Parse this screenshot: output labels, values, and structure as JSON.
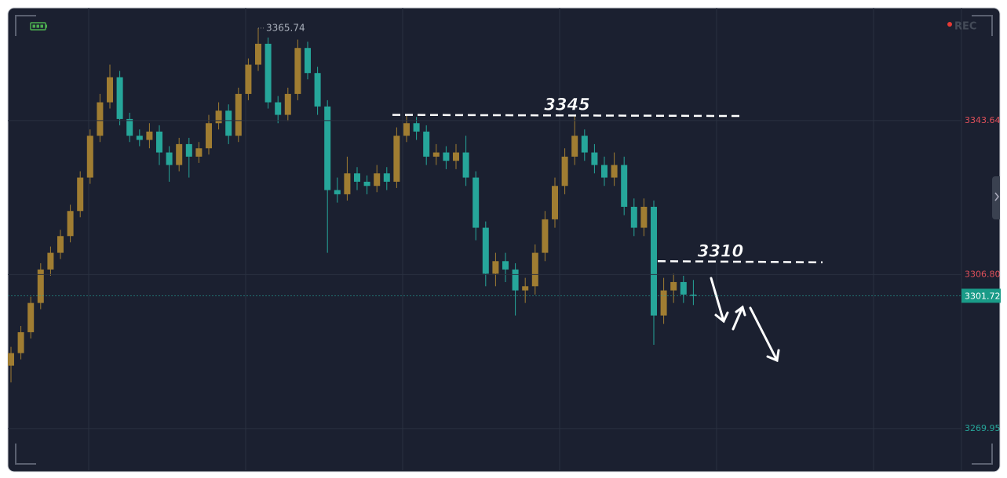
{
  "chart_data": {
    "type": "candlestick",
    "recording_label": "REC",
    "up_color": "#a07d32",
    "down_color": "#26a69a",
    "ylim": [
      3260.0,
      3370.6
    ],
    "yticks": [
      3343.64,
      {
        "value": 3306.8,
        "label": "3306.80"
      },
      3269.95
    ],
    "last_price": 3301.72,
    "levels": [
      {
        "value": 3345,
        "label": "3345"
      },
      {
        "value": 3310,
        "label": "3310"
      }
    ],
    "open": [
      3285,
      3288,
      3293,
      3300,
      3308,
      3312,
      3316,
      3322,
      3330,
      3340,
      3348,
      3354,
      3344,
      3340,
      3339,
      3341,
      3336,
      3333,
      3338,
      3335,
      3337,
      3343,
      3346,
      3340,
      3350,
      3357,
      3362,
      3348,
      3345,
      3350,
      3361,
      3355,
      3347,
      3327,
      3326,
      3331,
      3329,
      3328,
      3331,
      3329,
      3340,
      3343,
      3341,
      3335,
      3336,
      3334,
      3336,
      3330,
      3318,
      3307,
      3310,
      3308,
      3303,
      3304,
      3312,
      3320,
      3328,
      3335,
      3340,
      3336,
      3333,
      3330,
      3333,
      3323,
      3318,
      3323,
      3297,
      3303,
      3305,
      3302
    ],
    "high": [
      3289.5,
      3294.5,
      3301.5,
      3309.5,
      3313.5,
      3317.5,
      3323.5,
      3331.5,
      3341.5,
      3350,
      3357,
      3355.5,
      3345.5,
      3341.5,
      3343,
      3342.5,
      3337.5,
      3339.5,
      3339.5,
      3338.5,
      3345,
      3348,
      3347.5,
      3351.5,
      3358.5,
      3365.74,
      3363.5,
      3349.5,
      3351.5,
      3363,
      3362.5,
      3356.5,
      3348.5,
      3330,
      3335,
      3332.5,
      3330.5,
      3333,
      3332.5,
      3342,
      3345,
      3344.5,
      3342.5,
      3338,
      3337.5,
      3338,
      3340,
      3331.5,
      3319.5,
      3312,
      3312,
      3309.5,
      3306,
      3314,
      3322,
      3330,
      3337,
      3345,
      3341.5,
      3338,
      3335,
      3336,
      3335,
      3325,
      3325,
      3324.5,
      3306,
      3307,
      3306.5,
      3305.5
    ],
    "low": [
      3281,
      3286.5,
      3291.5,
      3298.5,
      3306.5,
      3310.5,
      3314.5,
      3320.5,
      3328.5,
      3338.5,
      3346.5,
      3342.5,
      3338.5,
      3337.5,
      3337,
      3333,
      3329,
      3331.5,
      3330,
      3333.5,
      3335.5,
      3341.5,
      3338,
      3338.5,
      3348.5,
      3355.5,
      3346.5,
      3343,
      3343.5,
      3348.5,
      3353.5,
      3345,
      3312,
      3324,
      3324.5,
      3327,
      3326,
      3326.5,
      3327,
      3327.5,
      3338.5,
      3339,
      3333,
      3333,
      3332,
      3332,
      3328,
      3315,
      3304,
      3304,
      3305,
      3297,
      3300,
      3302,
      3310,
      3318,
      3326,
      3333,
      3334,
      3331,
      3328,
      3328,
      3321,
      3316,
      3316,
      3290,
      3295,
      3300,
      3300,
      3299.5
    ],
    "close": [
      3288,
      3293,
      3300,
      3308,
      3312,
      3316,
      3322,
      3330,
      3340,
      3348,
      3354,
      3344,
      3340,
      3339,
      3341,
      3336,
      3333,
      3338,
      3335,
      3337,
      3343,
      3346,
      3340,
      3350,
      3357,
      3362,
      3348,
      3345,
      3350,
      3361,
      3355,
      3347,
      3327,
      3326,
      3331,
      3329,
      3328,
      3331,
      3329,
      3340,
      3343,
      3341,
      3335,
      3336,
      3334,
      3336,
      3330,
      3318,
      3307,
      3310,
      3308,
      3303,
      3304,
      3312,
      3320,
      3328,
      3335,
      3340,
      3336,
      3333,
      3330,
      3333,
      3323,
      3318,
      3323,
      3297,
      3303,
      3305,
      3302,
      3301.72
    ]
  }
}
